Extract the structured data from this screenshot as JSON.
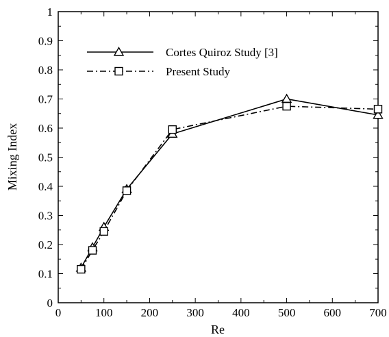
{
  "chart_data": {
    "type": "line",
    "xlabel": "Re",
    "ylabel": "Mixing Index",
    "xlim": [
      0,
      700
    ],
    "ylim": [
      0,
      1
    ],
    "xticks": [
      0,
      100,
      200,
      300,
      400,
      500,
      600,
      700
    ],
    "yticks": [
      0,
      0.1,
      0.2,
      0.3,
      0.4,
      0.5,
      0.6,
      0.7,
      0.8,
      0.9,
      1
    ],
    "grid": false,
    "legend_position": "top-left",
    "series": [
      {
        "name": "Cortes Quiroz Study [3]",
        "line_style": "solid",
        "marker": "triangle",
        "color": "#000000",
        "x": [
          50,
          75,
          100,
          150,
          250,
          500,
          700
        ],
        "y": [
          0.12,
          0.19,
          0.26,
          0.39,
          0.58,
          0.7,
          0.645
        ]
      },
      {
        "name": "Present Study",
        "line_style": "dash-dot",
        "marker": "square",
        "color": "#000000",
        "x": [
          50,
          75,
          100,
          150,
          250,
          500,
          700
        ],
        "y": [
          0.115,
          0.18,
          0.245,
          0.385,
          0.595,
          0.675,
          0.665
        ]
      }
    ]
  }
}
